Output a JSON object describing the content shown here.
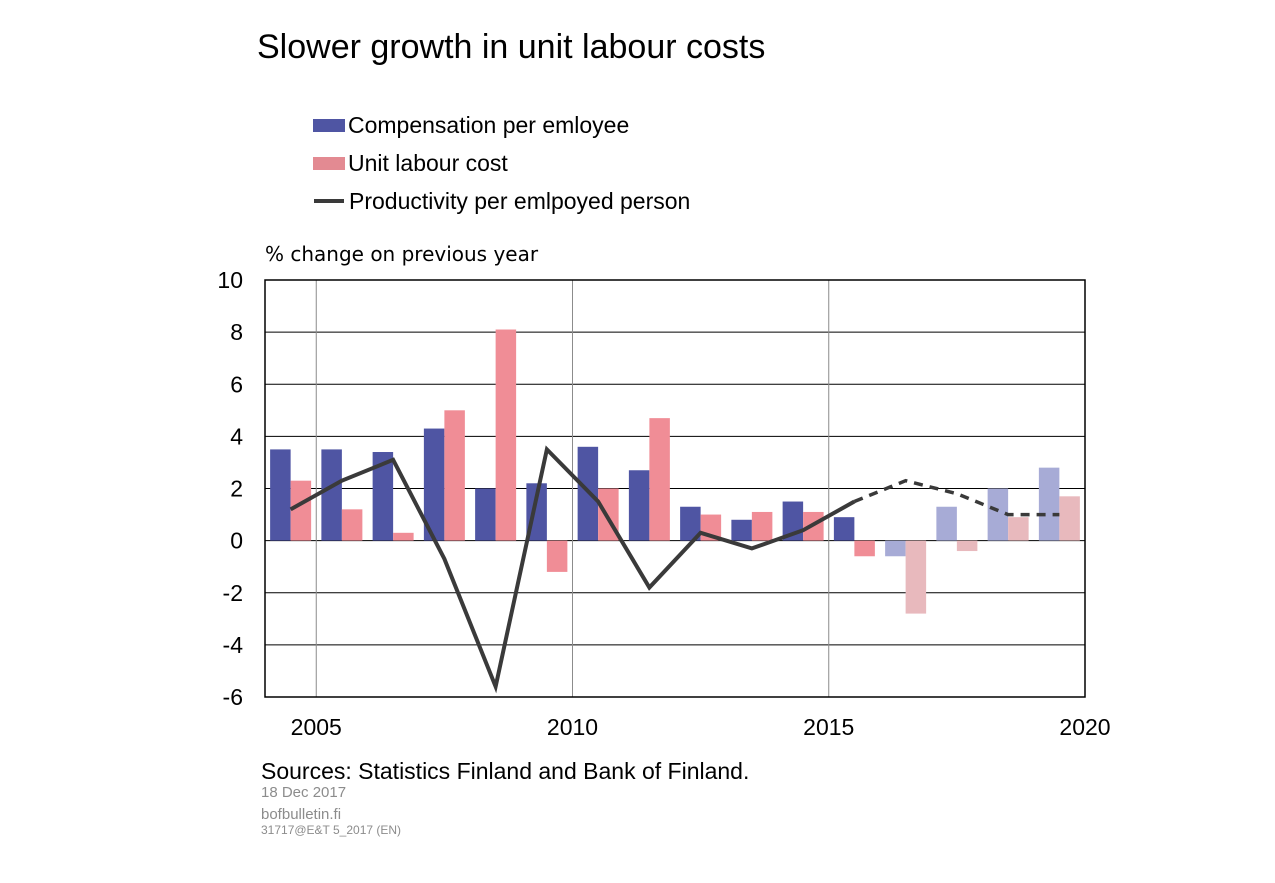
{
  "chart_data": {
    "type": "bar",
    "title": "Slower growth in unit labour costs",
    "ylabel": "% change on previous year",
    "ylim": [
      -6,
      10
    ],
    "yticks": [
      "10",
      "8",
      "6",
      "4",
      "2",
      "0",
      "-2",
      "-4",
      "-6"
    ],
    "xtick_labels": [
      "2005",
      "2010",
      "2015",
      "2020"
    ],
    "years": [
      2004,
      2005,
      2006,
      2007,
      2008,
      2009,
      2010,
      2011,
      2012,
      2013,
      2014,
      2015,
      2016,
      2017,
      2018,
      2019
    ],
    "forecast_from": 2016,
    "grid": true,
    "legend_position": "top-left",
    "series": [
      {
        "name": "Compensation per emloyee",
        "kind": "bar",
        "color": "#4f55a3",
        "forecast_color": "#a7abd6",
        "values": [
          3.5,
          3.5,
          3.4,
          4.3,
          2.0,
          2.2,
          3.6,
          2.7,
          1.3,
          0.8,
          1.5,
          0.9,
          -0.6,
          1.3,
          2.0,
          2.8
        ]
      },
      {
        "name": "Unit labour cost",
        "kind": "bar",
        "color": "#f08d96",
        "forecast_color": "#e8b9bd",
        "values": [
          2.3,
          1.2,
          0.3,
          5.0,
          8.1,
          -1.2,
          2.0,
          4.7,
          1.0,
          1.1,
          1.1,
          -0.6,
          -2.8,
          -0.4,
          0.9,
          1.7
        ]
      },
      {
        "name": "Productivity per emlpoyed person",
        "kind": "line",
        "color": "#3a3a3a",
        "values": [
          1.2,
          2.3,
          3.1,
          -0.7,
          -5.6,
          3.5,
          1.5,
          -1.8,
          0.3,
          -0.3,
          0.4,
          1.5,
          2.3,
          1.8,
          1.0,
          1.0
        ]
      }
    ]
  },
  "legend": {
    "item1": "Compensation per emloyee",
    "item2": "Unit labour cost",
    "item3": "Productivity per emlpoyed person"
  },
  "footer": {
    "sources": "Sources: Statistics Finland and Bank of Finland.",
    "date": "18 Dec 2017",
    "site": "bofbulletin.fi",
    "code": "31717@E&T 5_2017 (EN)"
  }
}
